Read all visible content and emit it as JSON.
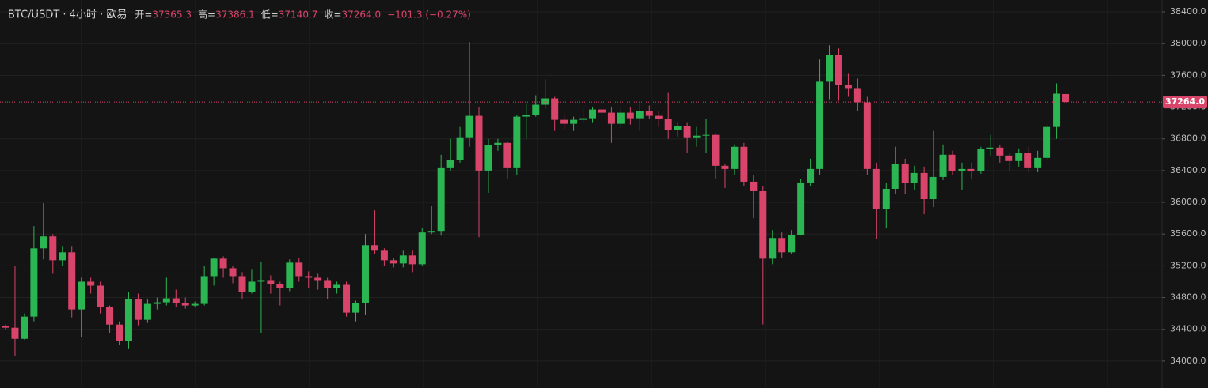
{
  "chart_data": {
    "type": "candlestick",
    "title": "BTC/USDT · 4小时 · 欧易",
    "stats": [
      {
        "label": "开=",
        "value": "37365.3"
      },
      {
        "label": "高=",
        "value": "37386.1"
      },
      {
        "label": "低=",
        "value": "37140.7"
      },
      {
        "label": "收=",
        "value": "37264.0"
      }
    ],
    "change": "−101.3 (−0.27%)",
    "up_color": "#2bb553",
    "down_color": "#d9446b",
    "ylim": [
      33700,
      38550
    ],
    "yticks": [
      {
        "value": 34000,
        "label": "34000.0"
      },
      {
        "value": 34400,
        "label": "34400.0"
      },
      {
        "value": 34800,
        "label": "34800.0"
      },
      {
        "value": 35200,
        "label": "35200.0"
      },
      {
        "value": 35600,
        "label": "35600.0"
      },
      {
        "value": 36000,
        "label": "36000.0"
      },
      {
        "value": 36400,
        "label": "36400.0"
      },
      {
        "value": 36800,
        "label": "36800.0"
      },
      {
        "value": 37200,
        "label": "37200.0"
      },
      {
        "value": 37600,
        "label": "37600.0"
      },
      {
        "value": 38000,
        "label": "38000.0"
      },
      {
        "value": 38400,
        "label": "38400.0"
      }
    ],
    "grid": true,
    "last_price": {
      "value": 37264,
      "label": "37264.0"
    },
    "open": [
      34440,
      34420,
      34280,
      34560,
      35420,
      35570,
      35270,
      35370,
      34650,
      35000,
      34950,
      34680,
      34460,
      34250,
      34780,
      34520,
      34720,
      34740,
      34790,
      34730,
      34700,
      34720,
      35070,
      35290,
      35170,
      35070,
      34870,
      35000,
      35020,
      34970,
      34920,
      35240,
      35070,
      35050,
      35020,
      34920,
      34960,
      34610,
      34730,
      35460,
      35400,
      35270,
      35230,
      35330,
      35220,
      35620,
      35640,
      36440,
      36530,
      36810,
      37090,
      36400,
      36720,
      36750,
      36440,
      37080,
      37100,
      37230,
      37310,
      37040,
      36990,
      37040,
      37060,
      37170,
      37130,
      36990,
      37130,
      37060,
      37150,
      37090,
      37050,
      36910,
      36960,
      36810,
      36840,
      36850,
      36460,
      36420,
      36700,
      36260,
      36140,
      35290,
      35550,
      35370,
      35590,
      36250,
      36420,
      37520,
      37860,
      37480,
      37440,
      37260,
      36420,
      35920,
      36170,
      36480,
      36240,
      36370,
      36040,
      36320,
      36600,
      36390,
      36420,
      36390,
      36670,
      36690,
      36590,
      36520,
      36620,
      36440,
      36560,
      36950,
      37365.3
    ],
    "high": [
      34460,
      35200,
      34600,
      35700,
      35990,
      35600,
      35450,
      35450,
      35050,
      35050,
      35000,
      34700,
      34500,
      34870,
      34850,
      34780,
      34800,
      35050,
      34900,
      34800,
      34750,
      35200,
      35300,
      35320,
      35200,
      35120,
      35150,
      35250,
      35080,
      35000,
      35280,
      35300,
      35130,
      35100,
      35050,
      35000,
      35000,
      34760,
      35600,
      35900,
      35420,
      35300,
      35400,
      35400,
      35680,
      35950,
      36600,
      36800,
      36950,
      38020,
      37200,
      36800,
      36800,
      36760,
      37100,
      37250,
      37350,
      37550,
      37330,
      37100,
      37080,
      37200,
      37200,
      37200,
      37200,
      37200,
      37200,
      37250,
      37220,
      37150,
      37380,
      37000,
      37000,
      36950,
      37050,
      36870,
      36480,
      36730,
      36750,
      36340,
      36200,
      35650,
      35620,
      35650,
      36290,
      36550,
      37800,
      37980,
      37940,
      37620,
      37560,
      37330,
      36500,
      36250,
      36700,
      36550,
      36460,
      36450,
      36900,
      36730,
      36650,
      36500,
      36500,
      36700,
      36850,
      36720,
      36620,
      36680,
      36700,
      36650,
      36980,
      37500,
      37386.1
    ],
    "low": [
      34400,
      34060,
      34270,
      34500,
      35280,
      35100,
      35200,
      34550,
      34300,
      34850,
      34600,
      34350,
      34200,
      34150,
      34450,
      34480,
      34650,
      34700,
      34680,
      34660,
      34680,
      34700,
      34950,
      35050,
      34980,
      34780,
      34850,
      34350,
      34850,
      34700,
      34880,
      35000,
      34920,
      34900,
      34780,
      34850,
      34560,
      34500,
      34580,
      35350,
      35200,
      35180,
      35180,
      35120,
      35200,
      35600,
      35580,
      36400,
      36500,
      36700,
      35560,
      36120,
      36650,
      36300,
      36350,
      36800,
      37080,
      37180,
      36900,
      36920,
      36900,
      37000,
      37000,
      36650,
      36750,
      36930,
      36980,
      36900,
      37050,
      36950,
      36800,
      36830,
      36620,
      36700,
      36620,
      36300,
      36180,
      36350,
      36200,
      35800,
      34460,
      35220,
      35300,
      35350,
      35580,
      36200,
      36350,
      37300,
      37280,
      37330,
      37150,
      36350,
      35540,
      35670,
      36100,
      36100,
      36150,
      35850,
      35940,
      36280,
      36350,
      36150,
      36300,
      36360,
      36580,
      36500,
      36400,
      36450,
      36380,
      36380,
      36540,
      36800,
      37140.7
    ],
    "close": [
      34420,
      34280,
      34560,
      35420,
      35570,
      35270,
      35370,
      34650,
      35000,
      34950,
      34680,
      34460,
      34250,
      34780,
      34520,
      34720,
      34740,
      34790,
      34730,
      34700,
      34720,
      35070,
      35290,
      35170,
      35070,
      34870,
      35000,
      35020,
      34970,
      34920,
      35240,
      35070,
      35050,
      35020,
      34920,
      34960,
      34610,
      34730,
      35460,
      35400,
      35270,
      35230,
      35330,
      35220,
      35620,
      35640,
      36440,
      36530,
      36810,
      37090,
      36400,
      36720,
      36750,
      36440,
      37080,
      37100,
      37230,
      37310,
      37040,
      36990,
      37040,
      37060,
      37170,
      37130,
      36990,
      37130,
      37060,
      37150,
      37090,
      37050,
      36910,
      36960,
      36810,
      36840,
      36850,
      36460,
      36420,
      36700,
      36260,
      36140,
      35290,
      35550,
      35370,
      35590,
      36250,
      36420,
      37520,
      37860,
      37480,
      37440,
      37260,
      36420,
      35920,
      36170,
      36480,
      36240,
      36370,
      36040,
      36320,
      36600,
      36390,
      36420,
      36390,
      36670,
      36690,
      36590,
      36520,
      36620,
      36440,
      36560,
      36950,
      37370,
      37264
    ]
  }
}
